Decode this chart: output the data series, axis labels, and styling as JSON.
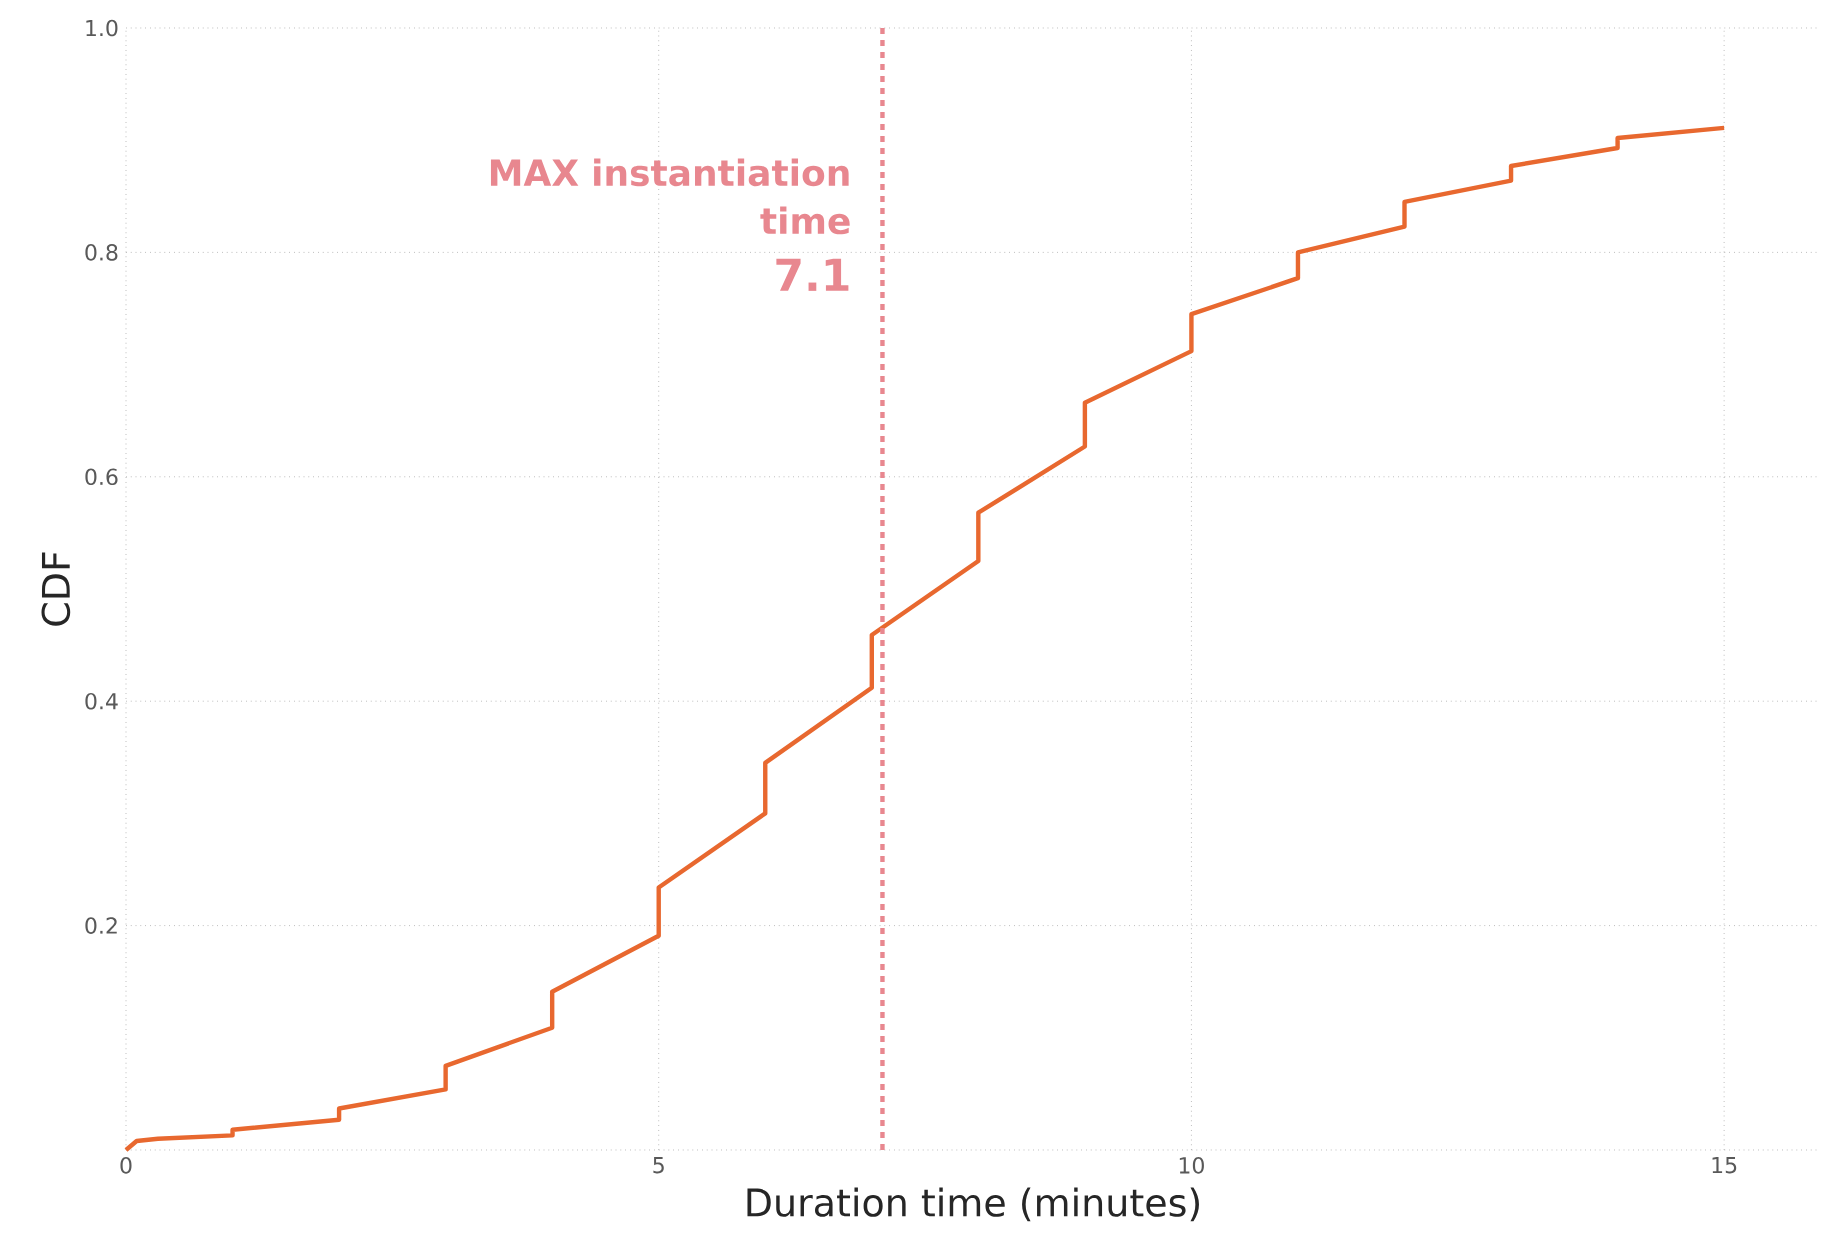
{
  "chart_data": {
    "type": "line",
    "xlabel": "Duration time (minutes)",
    "ylabel": "CDF",
    "x": [
      0,
      0.1,
      0.3,
      1,
      1,
      2,
      2,
      3,
      3,
      4,
      4,
      5,
      5,
      6,
      6,
      7,
      7,
      8,
      8,
      9,
      9,
      10,
      10,
      11,
      11,
      12,
      12,
      13,
      13,
      14,
      14,
      15
    ],
    "series": [
      {
        "color": "#e8682f",
        "values": [
          0,
          0.008,
          0.01,
          0.013,
          0.018,
          0.027,
          0.037,
          0.054,
          0.075,
          0.109,
          0.141,
          0.191,
          0.234,
          0.3,
          0.345,
          0.412,
          0.459,
          0.525,
          0.568,
          0.627,
          0.666,
          0.712,
          0.745,
          0.777,
          0.8,
          0.823,
          0.845,
          0.864,
          0.877,
          0.893,
          0.902,
          0.911
        ]
      }
    ],
    "xlim": [
      0,
      15.9
    ],
    "ylim": [
      0,
      1
    ],
    "xticks": [
      0,
      5,
      10,
      15
    ],
    "yticks": [
      {
        "value": 0,
        "label": null
      },
      0.2,
      0.4,
      0.6,
      0.8,
      {
        "value": 1,
        "label": "1.0"
      }
    ],
    "grid": true,
    "marker": "none",
    "line_style": "solid",
    "ref_lines": [
      {
        "axis": "x",
        "value": 7.1,
        "label": "MAX instantiation time",
        "color": "#e8878f",
        "line_style": "dashed"
      }
    ],
    "annotations": [
      {
        "text": "7.1",
        "x": 7.1,
        "y": 0.78
      }
    ]
  }
}
